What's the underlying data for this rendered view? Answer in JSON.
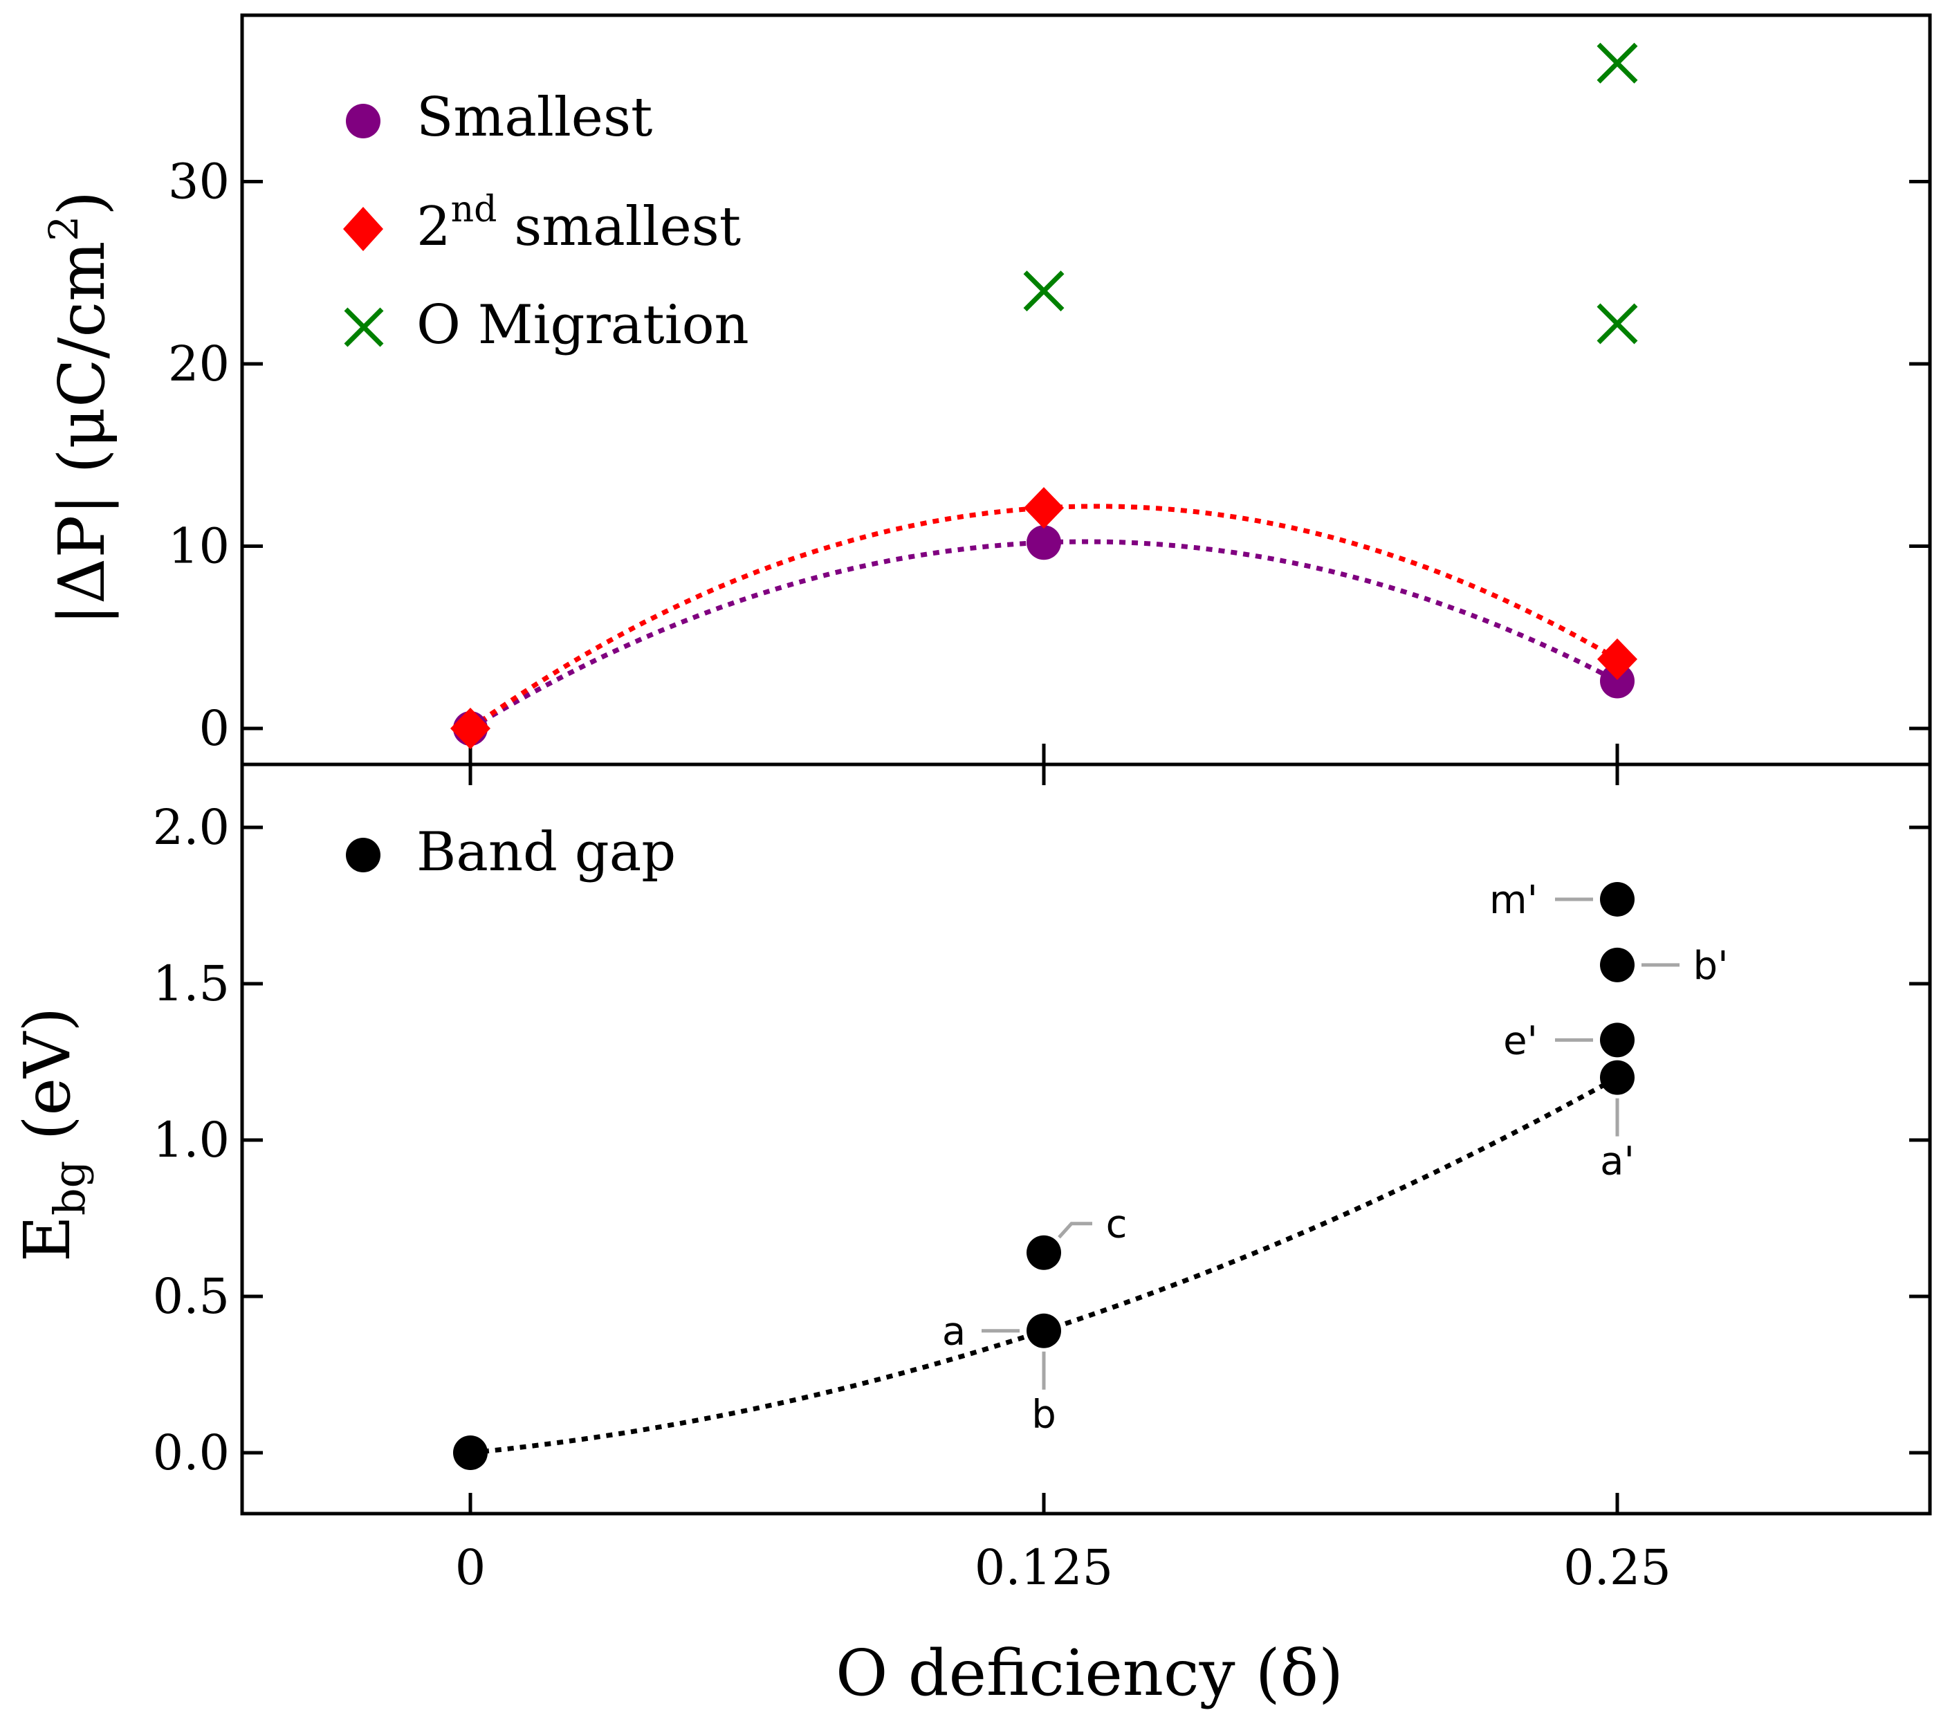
{
  "chart_data": [
    {
      "type": "scatter",
      "panel": "top",
      "ylabel": "|ΔP| (μC/cm2)",
      "ylabel_parts": {
        "prefix": "|ΔP| (μC/cm",
        "sup": "2",
        "suffix": ")"
      },
      "xlabel": "",
      "xlim": [
        -0.04,
        0.318
      ],
      "ylim": [
        -2,
        39
      ],
      "yticks": [
        0,
        10,
        20,
        30
      ],
      "ytick_labels": [
        "0",
        "10",
        "20",
        "30"
      ],
      "legend_position": "top-left",
      "series": [
        {
          "name": "Smallest",
          "marker": "circle",
          "color": "#800080",
          "points": [
            {
              "x": 0,
              "y": 0
            },
            {
              "x": 0.125,
              "y": 10.2
            },
            {
              "x": 0.25,
              "y": 2.6
            }
          ],
          "fit_line": true
        },
        {
          "name": "2nd smallest",
          "legend_parts": {
            "base": "2",
            "sup": "nd",
            "rest": " smallest"
          },
          "marker": "diamond",
          "color": "#ff0000",
          "points": [
            {
              "x": 0,
              "y": 0
            },
            {
              "x": 0.125,
              "y": 12.1
            },
            {
              "x": 0.25,
              "y": 3.8
            }
          ],
          "fit_line": true
        },
        {
          "name": "O Migration",
          "marker": "x",
          "color": "#008000",
          "points": [
            {
              "x": 0.125,
              "y": 24
            },
            {
              "x": 0.25,
              "y": 36.5
            },
            {
              "x": 0.25,
              "y": 22.2
            }
          ],
          "fit_line": false
        }
      ]
    },
    {
      "type": "scatter",
      "panel": "bottom",
      "ylabel": "Ebg (eV)",
      "ylabel_parts": {
        "base": "E",
        "sub": "bg",
        "rest": " (eV)"
      },
      "xlabel": "O deficiency (δ)",
      "xlim": [
        -0.04,
        0.318
      ],
      "ylim": [
        -0.2,
        2.2
      ],
      "yticks": [
        0.0,
        0.5,
        1.0,
        1.5,
        2.0
      ],
      "ytick_labels": [
        "0.0",
        "0.5",
        "1.0",
        "1.5",
        "2.0"
      ],
      "xticks": [
        0,
        0.125,
        0.25
      ],
      "xtick_labels": [
        "0",
        "0.125",
        "0.25"
      ],
      "legend_position": "top-left",
      "series": [
        {
          "name": "Band gap",
          "marker": "circle",
          "color": "#000000",
          "points": [
            {
              "x": 0,
              "y": 0.0,
              "label": ""
            },
            {
              "x": 0.125,
              "y": 0.39,
              "label": "a"
            },
            {
              "x": 0.125,
              "y": 0.39,
              "label": "b"
            },
            {
              "x": 0.125,
              "y": 0.64,
              "label": "c"
            },
            {
              "x": 0.25,
              "y": 1.2,
              "label": "a'"
            },
            {
              "x": 0.25,
              "y": 1.32,
              "label": "e'"
            },
            {
              "x": 0.25,
              "y": 1.56,
              "label": "b'"
            },
            {
              "x": 0.25,
              "y": 1.77,
              "label": "m'"
            }
          ],
          "fit_points": [
            {
              "x": 0,
              "y": 0.0
            },
            {
              "x": 0.125,
              "y": 0.39
            },
            {
              "x": 0.25,
              "y": 1.2
            }
          ]
        }
      ]
    }
  ]
}
